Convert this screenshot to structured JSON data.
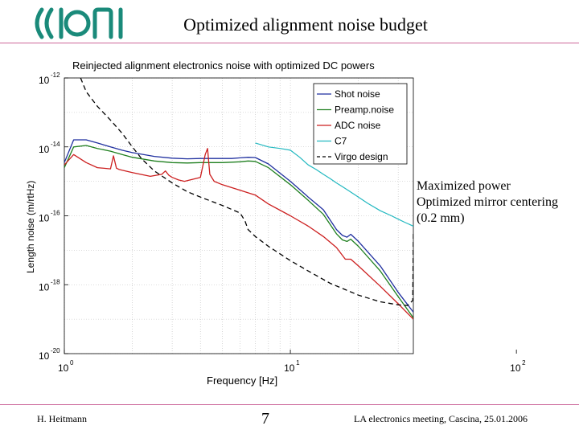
{
  "slide": {
    "title": "Optimized alignment noise budget",
    "rule_color": "#cc6699",
    "annotations": [
      "Maximized power",
      "Optimized mirror centering",
      "(0.2 mm)"
    ],
    "footer": {
      "author": "H. Heitmann",
      "page": "7",
      "event": "LA electronics meeting, Cascina, 25.01.2006"
    },
    "logo": {
      "icon": "virgo-logo-icon",
      "color": "#1a8a7a"
    }
  },
  "chart_data": {
    "type": "line",
    "title": "Reinjected alignment electronics noise with optimized DC powers",
    "xlabel": "Frequency [Hz]",
    "ylabel": "Length noise (m/rtHz)",
    "xscale": "log",
    "yscale": "log",
    "xlim": [
      1,
      35
    ],
    "ylim": [
      1e-20,
      1e-12
    ],
    "x_ticks": [
      {
        "value": 1,
        "base": "10",
        "exp": "0"
      },
      {
        "value": 10,
        "base": "10",
        "exp": "1"
      },
      {
        "value": 100,
        "base": "10",
        "exp": "2"
      }
    ],
    "y_ticks": [
      {
        "value": 1e-12,
        "base": "10",
        "exp": "-12"
      },
      {
        "value": 1e-14,
        "base": "10",
        "exp": "-14"
      },
      {
        "value": 1e-16,
        "base": "10",
        "exp": "-16"
      },
      {
        "value": 1e-18,
        "base": "10",
        "exp": "-18"
      },
      {
        "value": 1e-20,
        "base": "10",
        "exp": "-20"
      }
    ],
    "grid": true,
    "legend_position": "top-right",
    "series": [
      {
        "name": "Shot noise",
        "color": "#1f2f9f",
        "dash": "",
        "x": [
          1,
          1.1,
          1.25,
          1.4,
          1.6,
          1.8,
          2.0,
          2.5,
          3.0,
          3.5,
          4.0,
          4.5,
          5.0,
          5.5,
          6.0,
          6.5,
          7.0,
          8.0,
          10,
          12,
          14,
          16,
          17,
          17.8,
          18.5,
          20,
          25,
          30,
          35
        ],
        "y": [
          3.5e-15,
          1.6e-14,
          1.6e-14,
          1.3e-14,
          1e-14,
          8e-15,
          6.8e-15,
          5.3e-15,
          4.7e-15,
          4.5e-15,
          4.6e-15,
          4.6e-15,
          4.6e-15,
          4.6e-15,
          4.8e-15,
          5e-15,
          4.9e-15,
          3.2e-15,
          1e-15,
          3.5e-16,
          1.5e-16,
          4e-17,
          2.7e-17,
          2.4e-17,
          2.9e-17,
          1.8e-17,
          3.5e-18,
          6e-19,
          1.6e-19
        ]
      },
      {
        "name": "Preamp.noise",
        "color": "#1f7f1f",
        "dash": "",
        "x": [
          1,
          1.1,
          1.25,
          1.4,
          1.6,
          1.8,
          2.0,
          2.5,
          3.0,
          3.5,
          4.0,
          4.5,
          5.0,
          5.5,
          6.0,
          6.5,
          7.0,
          8.0,
          10,
          12,
          14,
          16,
          17,
          17.8,
          18.5,
          20,
          25,
          30,
          35
        ],
        "y": [
          2.5e-15,
          1e-14,
          1.1e-14,
          9e-15,
          7.5e-15,
          6e-15,
          5e-15,
          3.9e-15,
          3.5e-15,
          3.4e-15,
          3.5e-15,
          3.5e-15,
          3.5e-15,
          3.6e-15,
          3.7e-15,
          3.9e-15,
          3.8e-15,
          2.5e-15,
          8e-16,
          2.8e-16,
          1.1e-16,
          3e-17,
          2e-17,
          1.8e-17,
          2.1e-17,
          1.3e-17,
          2.5e-18,
          4.5e-19,
          1.1e-19
        ]
      },
      {
        "name": "ADC noise",
        "color": "#cc1f1f",
        "dash": "",
        "x": [
          1,
          1.1,
          1.25,
          1.4,
          1.6,
          1.65,
          1.7,
          1.75,
          1.8,
          2.0,
          2.4,
          2.7,
          2.8,
          2.9,
          3.0,
          3.2,
          3.4,
          3.6,
          4.0,
          4.2,
          4.3,
          4.4,
          4.6,
          5.0,
          6.0,
          7.0,
          8.0,
          10,
          12,
          14,
          16,
          17.5,
          18.5,
          20,
          25,
          30,
          35
        ],
        "y": [
          3e-15,
          6e-15,
          3.5e-15,
          2.5e-15,
          2.3e-15,
          5.5e-15,
          2.4e-15,
          2.2e-15,
          2.1e-15,
          1.8e-15,
          1.4e-15,
          1.6e-15,
          2e-15,
          1.5e-15,
          1.3e-15,
          1.1e-15,
          1e-15,
          1.1e-15,
          1.3e-15,
          6e-15,
          9e-15,
          1.6e-15,
          1e-15,
          8e-16,
          5.5e-16,
          4e-16,
          2.2e-16,
          1e-16,
          5e-17,
          2.5e-17,
          1.2e-17,
          5.5e-18,
          5.5e-18,
          3.5e-18,
          9e-19,
          2.8e-19,
          1e-19
        ]
      },
      {
        "name": "C7",
        "color": "#22b8c0",
        "dash": "",
        "x": [
          7.0,
          8.0,
          9.0,
          10,
          11,
          12,
          13,
          14,
          15,
          16,
          17,
          18,
          20,
          22,
          25,
          28,
          30,
          32,
          35
        ],
        "y": [
          1.3e-14,
          1e-14,
          9e-15,
          8e-15,
          5e-15,
          3e-15,
          2.2e-15,
          1.6e-15,
          1.2e-15,
          9e-16,
          7e-16,
          5.5e-16,
          3.5e-16,
          2.3e-16,
          1.4e-16,
          1e-16,
          8e-17,
          6.5e-17,
          5e-17
        ]
      },
      {
        "name": "Virgo design",
        "color": "#000000",
        "dash": "6,4",
        "x": [
          1.18,
          1.25,
          1.4,
          1.6,
          1.8,
          2.0,
          2.2,
          2.5,
          3.0,
          3.5,
          4.0,
          5.0,
          6.0,
          6.3,
          6.5,
          6.8,
          7.0,
          8.0,
          10,
          12,
          15,
          20,
          25,
          30,
          33,
          34.8,
          35
        ],
        "y": [
          1e-12,
          4e-13,
          1.5e-13,
          6e-14,
          2.5e-14,
          1e-14,
          4.5e-15,
          2e-15,
          9e-16,
          5e-16,
          3.5e-16,
          2e-16,
          1.2e-16,
          7e-17,
          4e-17,
          3e-17,
          2.5e-17,
          1.3e-17,
          5e-18,
          2.5e-18,
          1.1e-18,
          5e-19,
          3.2e-19,
          2.6e-19,
          2.5e-19,
          3.5e-19,
          3e-17
        ]
      }
    ]
  }
}
